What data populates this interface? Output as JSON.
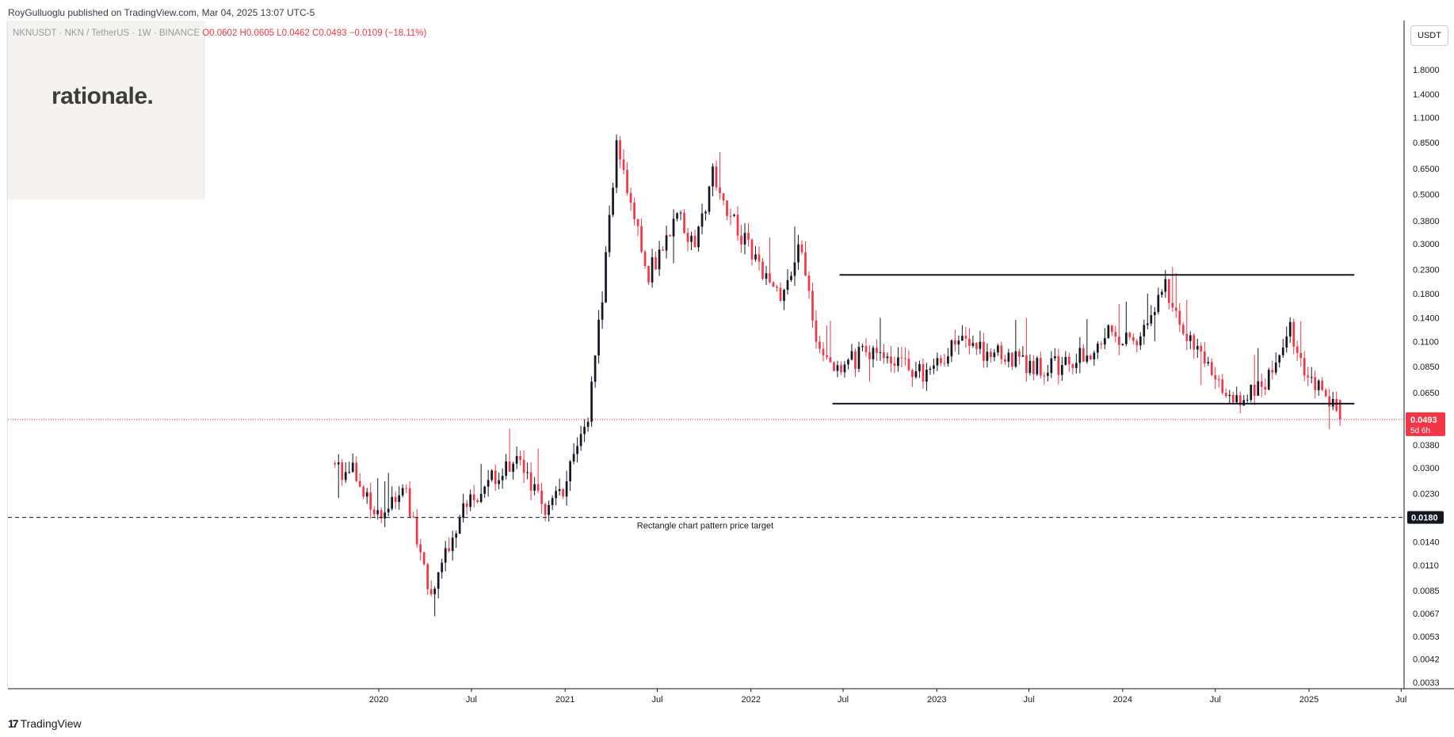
{
  "header": {
    "publisher_line": "RoyGulluoglu published on TradingView.com, Mar 04, 2025 13:07 UTC-5"
  },
  "logo": {
    "text": "rationale."
  },
  "legend": {
    "symbol": "NKNUSDT · NKN / TetherUS · 1W · BINANCE",
    "open": "O0.0602",
    "high": "H0.0605",
    "low": "L0.0462",
    "close": "C0.0493",
    "change": "−0.0109 (−18.11%)"
  },
  "currency": "USDT",
  "footer": {
    "brand": "TradingView"
  },
  "colors": {
    "up": "#131722",
    "down": "#f23645",
    "price_line": "#f23645",
    "last_price_bg": "#f23645",
    "target_bg": "#131722"
  },
  "chart_data": {
    "type": "candlestick",
    "scale": "log",
    "y_ticks": [
      "1.8000",
      "1.4000",
      "1.1000",
      "0.8500",
      "0.6500",
      "0.5000",
      "0.3800",
      "0.3000",
      "0.2300",
      "0.1800",
      "0.1400",
      "0.1100",
      "0.0850",
      "0.0650",
      "0.0380",
      "0.0300",
      "0.0230",
      "0.0140",
      "0.0110",
      "0.0085",
      "0.0067",
      "0.0053",
      "0.0042",
      "0.0033"
    ],
    "x_ticks": [
      {
        "label": "2020",
        "date": "2020-01-01"
      },
      {
        "label": "Jul",
        "date": "2020-07-01"
      },
      {
        "label": "2021",
        "date": "2021-01-01"
      },
      {
        "label": "Jul",
        "date": "2021-07-01"
      },
      {
        "label": "2022",
        "date": "2022-01-01"
      },
      {
        "label": "Jul",
        "date": "2022-07-01"
      },
      {
        "label": "2023",
        "date": "2023-01-01"
      },
      {
        "label": "Jul",
        "date": "2023-07-01"
      },
      {
        "label": "2024",
        "date": "2024-01-01"
      },
      {
        "label": "Jul",
        "date": "2024-07-01"
      },
      {
        "label": "2025",
        "date": "2025-01-01"
      },
      {
        "label": "Jul",
        "date": "2025-07-01"
      }
    ],
    "last_price": {
      "value": "0.0493",
      "countdown": "5d 6h"
    },
    "target": {
      "value": "0.0180",
      "label": "Rectangle chart pattern price target"
    },
    "rectangle": {
      "top": 0.218,
      "bottom": 0.058,
      "start": "2022-06-10",
      "end": "2025-03-31"
    },
    "anchors": [
      {
        "date": "2019-10-07",
        "price": 0.03
      },
      {
        "date": "2019-11-18",
        "price": 0.029
      },
      {
        "date": "2019-12-30",
        "price": 0.018
      },
      {
        "date": "2020-02-24",
        "price": 0.023
      },
      {
        "date": "2020-04-13",
        "price": 0.0075
      },
      {
        "date": "2020-06-01",
        "price": 0.017
      },
      {
        "date": "2020-08-03",
        "price": 0.027
      },
      {
        "date": "2020-09-28",
        "price": 0.031
      },
      {
        "date": "2020-11-23",
        "price": 0.02
      },
      {
        "date": "2020-12-28",
        "price": 0.025
      },
      {
        "date": "2021-02-15",
        "price": 0.05
      },
      {
        "date": "2021-03-22",
        "price": 0.25
      },
      {
        "date": "2021-04-12",
        "price": 0.9
      },
      {
        "date": "2021-05-03",
        "price": 0.55
      },
      {
        "date": "2021-06-14",
        "price": 0.22
      },
      {
        "date": "2021-08-09",
        "price": 0.4
      },
      {
        "date": "2021-09-13",
        "price": 0.28
      },
      {
        "date": "2021-10-18",
        "price": 0.65
      },
      {
        "date": "2021-11-22",
        "price": 0.4
      },
      {
        "date": "2022-01-10",
        "price": 0.25
      },
      {
        "date": "2022-03-07",
        "price": 0.17
      },
      {
        "date": "2022-04-04",
        "price": 0.3
      },
      {
        "date": "2022-05-09",
        "price": 0.12
      },
      {
        "date": "2022-06-13",
        "price": 0.08
      },
      {
        "date": "2022-08-15",
        "price": 0.1
      },
      {
        "date": "2022-10-17",
        "price": 0.085
      },
      {
        "date": "2022-12-19",
        "price": 0.08
      },
      {
        "date": "2023-02-13",
        "price": 0.11
      },
      {
        "date": "2023-04-10",
        "price": 0.1
      },
      {
        "date": "2023-06-19",
        "price": 0.088
      },
      {
        "date": "2023-09-18",
        "price": 0.085
      },
      {
        "date": "2023-12-04",
        "price": 0.12
      },
      {
        "date": "2024-02-05",
        "price": 0.11
      },
      {
        "date": "2024-03-25",
        "price": 0.19
      },
      {
        "date": "2024-05-06",
        "price": 0.12
      },
      {
        "date": "2024-06-24",
        "price": 0.08
      },
      {
        "date": "2024-08-12",
        "price": 0.06
      },
      {
        "date": "2024-10-14",
        "price": 0.075
      },
      {
        "date": "2024-11-25",
        "price": 0.125
      },
      {
        "date": "2024-12-23",
        "price": 0.085
      },
      {
        "date": "2025-02-10",
        "price": 0.06
      },
      {
        "date": "2025-03-03",
        "price": 0.0493
      }
    ]
  }
}
